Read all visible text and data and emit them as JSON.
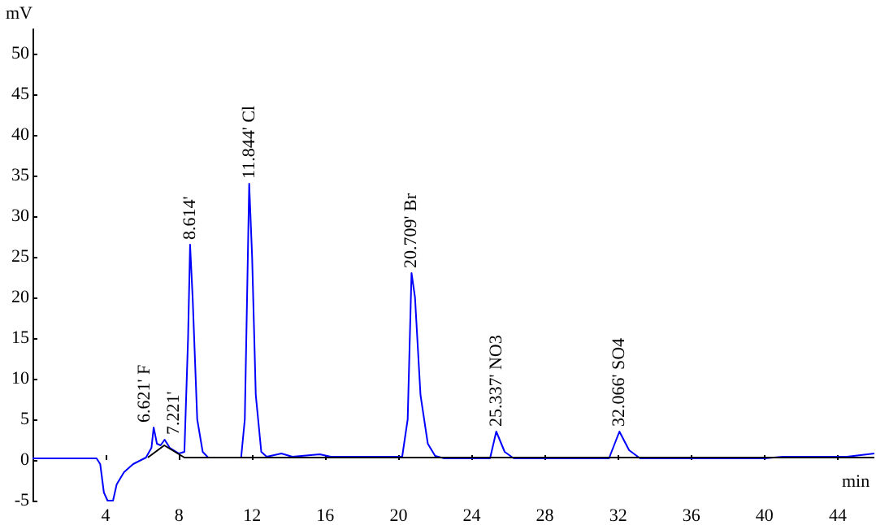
{
  "chart_data": {
    "type": "line",
    "xlabel": "min",
    "ylabel": "mV",
    "xlim": [
      0,
      46
    ],
    "ylim": [
      -5,
      53
    ],
    "xticks": [
      4,
      8,
      12,
      16,
      20,
      24,
      28,
      32,
      36,
      40,
      44
    ],
    "yticks": [
      -5,
      0,
      5,
      10,
      15,
      20,
      25,
      30,
      35,
      40,
      45,
      50
    ],
    "grid": false,
    "marker": "none",
    "line_style": "solid",
    "series": [
      {
        "color": "#0000ff",
        "x": [
          0,
          3.5,
          3.7,
          3.9,
          4.1,
          4.4,
          4.6,
          5.0,
          5.5,
          6.2,
          6.5,
          6.62,
          6.8,
          7.0,
          7.22,
          7.5,
          8.0,
          8.3,
          8.5,
          8.61,
          8.75,
          9.0,
          9.3,
          9.6,
          11.4,
          11.6,
          11.84,
          12.0,
          12.2,
          12.5,
          12.8,
          13.6,
          14.2,
          15.7,
          16.3,
          20.2,
          20.5,
          20.71,
          20.9,
          21.2,
          21.6,
          22.0,
          22.5,
          25.0,
          25.34,
          25.8,
          26.3,
          31.5,
          32.07,
          32.6,
          33.2,
          40.0,
          41.0,
          44.5,
          46
        ],
        "values": [
          0.2,
          0.2,
          -0.5,
          -4,
          -5,
          -5,
          -3,
          -1.5,
          -0.5,
          0.3,
          1.5,
          4,
          2,
          1.8,
          2.5,
          1.5,
          0.8,
          1,
          15,
          26.5,
          20,
          5,
          1,
          0.3,
          0.3,
          5,
          34,
          25,
          8,
          1,
          0.4,
          0.8,
          0.4,
          0.7,
          0.4,
          0.4,
          5,
          23,
          20,
          8,
          2,
          0.5,
          0.2,
          0.2,
          3.5,
          1,
          0.2,
          0.2,
          3.5,
          1.2,
          0.2,
          0.2,
          0.4,
          0.4,
          0.8
        ]
      },
      {
        "color": "#000000",
        "x": [
          6.3,
          7.2,
          8.3,
          46
        ],
        "values": [
          0.3,
          1.8,
          0.3,
          0.3
        ]
      }
    ],
    "annotations": [
      {
        "text": "6.621' F",
        "x": 6.621,
        "y": 4
      },
      {
        "text": "7.221'",
        "x": 7.221,
        "y": 2.5
      },
      {
        "text": "8.614'",
        "x": 8.614,
        "y": 26.5
      },
      {
        "text": "11.844' Cl",
        "x": 11.844,
        "y": 34
      },
      {
        "text": "20.709' Br",
        "x": 20.709,
        "y": 23
      },
      {
        "text": "25.337' NO3",
        "x": 25.337,
        "y": 3.5
      },
      {
        "text": "32.066' SO4",
        "x": 32.066,
        "y": 3.5
      }
    ]
  }
}
